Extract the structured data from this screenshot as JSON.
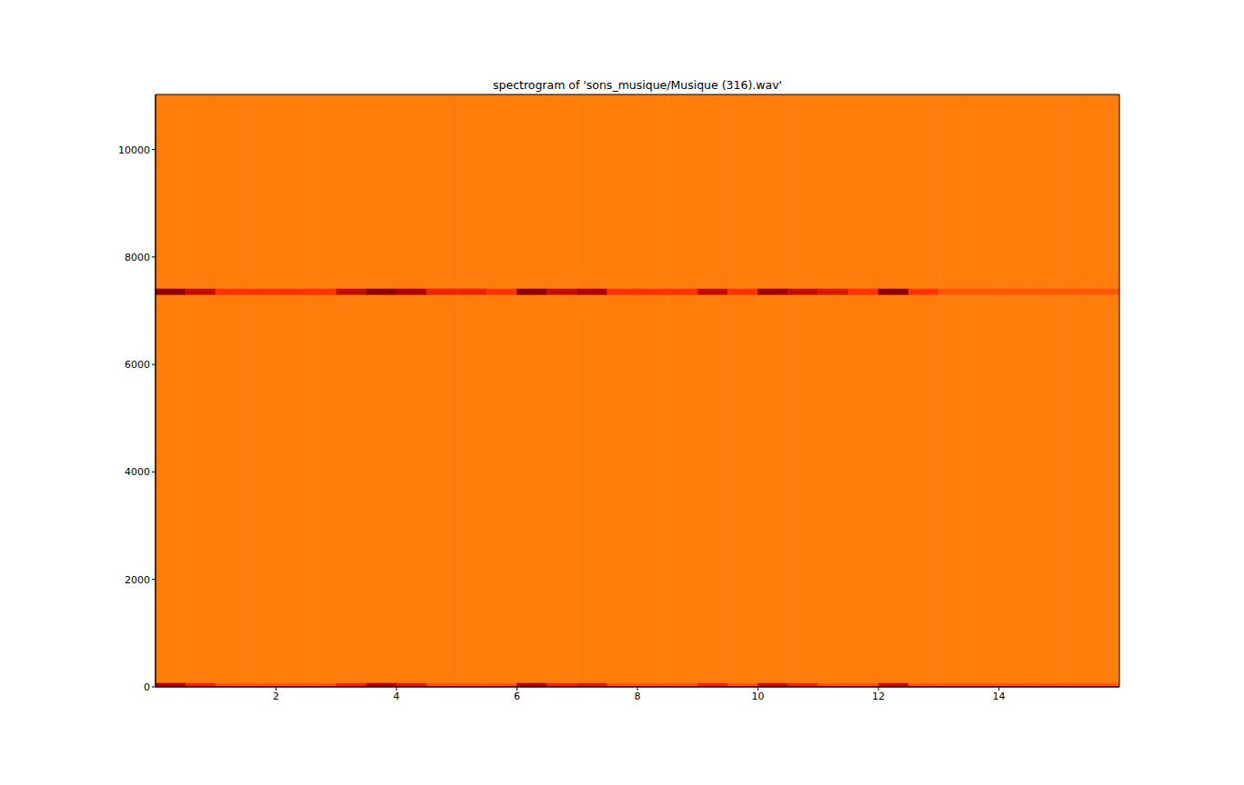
{
  "chart_data": {
    "type": "heatmap",
    "title": "spectrogram of 'sons_musique/Musique (316).wav'",
    "xlim": [
      0,
      16
    ],
    "xticks": [
      2,
      4,
      6,
      8,
      10,
      12,
      14
    ],
    "ylim": [
      0,
      11025
    ],
    "yticks": [
      0,
      2000,
      4000,
      6000,
      8000,
      10000
    ],
    "x_edges": [
      0,
      0.5,
      1,
      1.5,
      2,
      2.5,
      3,
      3.5,
      4,
      4.5,
      5,
      5.5,
      6,
      6.5,
      7,
      7.5,
      8,
      8.5,
      9,
      9.5,
      10,
      10.5,
      11,
      11.5,
      12,
      12.5,
      13,
      13.5,
      14,
      14.5,
      15,
      15.5,
      16
    ],
    "y_edges": [
      0,
      80,
      7300,
      7420,
      11025
    ],
    "zlim": [
      0,
      1
    ],
    "cells": [
      [
        0.3,
        0.45,
        0.55,
        0.55,
        0.55,
        0.55,
        0.45,
        0.3,
        0.4,
        0.55,
        0.55,
        0.55,
        0.3,
        0.45,
        0.4,
        0.55,
        0.55,
        0.55,
        0.45,
        0.55,
        0.35,
        0.45,
        0.55,
        0.55,
        0.35,
        0.55,
        0.55,
        0.55,
        0.55,
        0.55,
        0.55,
        0.55
      ],
      [
        0.6,
        0.6,
        0.6,
        0.6,
        0.6,
        0.6,
        0.6,
        0.6,
        0.6,
        0.6,
        0.6,
        0.6,
        0.6,
        0.6,
        0.6,
        0.6,
        0.6,
        0.6,
        0.6,
        0.6,
        0.6,
        0.6,
        0.6,
        0.6,
        0.6,
        0.6,
        0.6,
        0.6,
        0.6,
        0.6,
        0.6,
        0.6
      ],
      [
        0.2,
        0.35,
        0.5,
        0.5,
        0.5,
        0.5,
        0.35,
        0.2,
        0.3,
        0.45,
        0.45,
        0.5,
        0.2,
        0.35,
        0.3,
        0.5,
        0.5,
        0.5,
        0.35,
        0.5,
        0.25,
        0.35,
        0.4,
        0.5,
        0.2,
        0.5,
        0.55,
        0.55,
        0.55,
        0.55,
        0.55,
        0.55
      ],
      [
        0.6,
        0.6,
        0.6,
        0.6,
        0.6,
        0.6,
        0.6,
        0.6,
        0.6,
        0.6,
        0.6,
        0.6,
        0.6,
        0.6,
        0.6,
        0.6,
        0.6,
        0.6,
        0.6,
        0.6,
        0.6,
        0.6,
        0.6,
        0.6,
        0.6,
        0.6,
        0.6,
        0.6,
        0.6,
        0.6,
        0.6,
        0.6
      ]
    ]
  }
}
